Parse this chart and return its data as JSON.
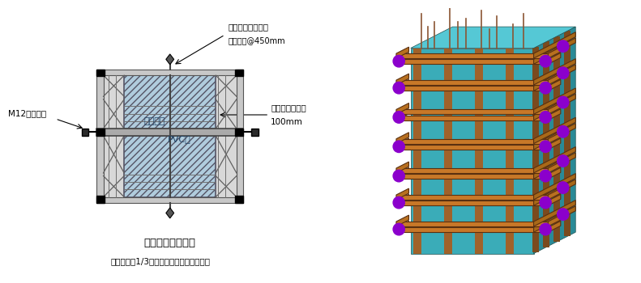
{
  "bg_color": "#b8eaf5",
  "label_top1": "外围对拉螺栓加固",
  "label_top2": "双钢管箍@450mm",
  "label_right1": "木枋净距不大于",
  "label_right2": "100mm",
  "label_left": "M12对拉螺栓",
  "label_center1": "木胶合板",
  "label_center2": "PVC管",
  "label_bottom_title": "方柱模板支撑示意",
  "label_note": "注：柱下部1/3范围内对拉螺栓设置双螺丝",
  "teal_color": "#3AACB8",
  "teal_dark": "#2A8A96",
  "teal_top": "#55C8D5",
  "brown_color": "#A0622A",
  "brown_dark": "#7A4A1E",
  "purple_color": "#8B00CC",
  "rebar_color": "#8B5533"
}
